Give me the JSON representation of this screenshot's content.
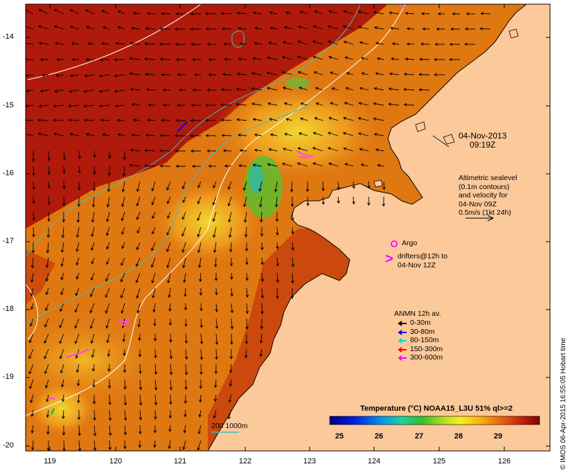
{
  "date": {
    "line1": "04-Nov-2013",
    "line2": "09:19Z"
  },
  "altimetry": {
    "lines": [
      "Altimetric sealevel",
      "(0.1m contours)",
      "and velocity for",
      "04-Nov 09Z",
      "0.5m/s (1kt 24h)"
    ]
  },
  "argo_label": "Argo",
  "drifters": {
    "symbol": ">",
    "lines": [
      "drifters@12h to",
      "04-Nov 12Z"
    ]
  },
  "anmn": {
    "title": "ANMN 12h av.",
    "items": [
      {
        "label": "0-30m",
        "color": "#000000"
      },
      {
        "label": "30-80m",
        "color": "#0000ff"
      },
      {
        "label": "80-150m",
        "color": "#00d8d8"
      },
      {
        "label": "150-300m",
        "color": "#ff0000"
      },
      {
        "label": "300-600m",
        "color": "#ff00ff"
      }
    ]
  },
  "colorbar": {
    "title": "Temperature (°C) NOAA15_L3U 51% ql>=2",
    "ticks": [
      "25",
      "26",
      "27",
      "28",
      "29"
    ]
  },
  "depth_legend": "200  1000m",
  "credit": "© IMOS 06-Apr-2015 16:55:05 Hobart time",
  "axes": {
    "x_ticks": [
      "119",
      "120",
      "121",
      "122",
      "123",
      "124",
      "125",
      "126"
    ],
    "y_ticks": [
      "-14",
      "-15",
      "-16",
      "-17",
      "-18",
      "-19",
      "-20"
    ]
  },
  "colors": {
    "land": "#fcc99a",
    "ocean_warm": "#b01a0a",
    "ocean_mid": "#e07812",
    "contour": "#40c0b8"
  }
}
